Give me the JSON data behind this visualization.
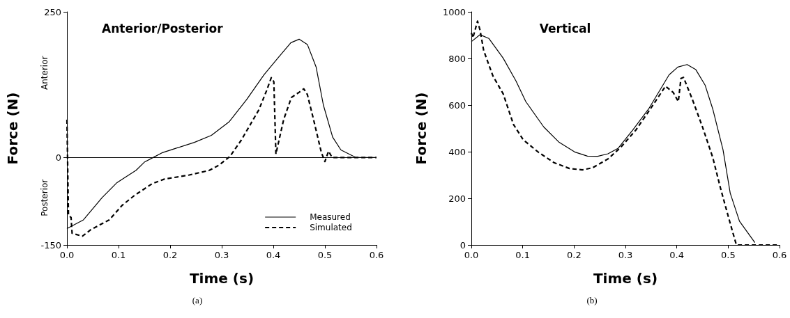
{
  "chart_data": [
    {
      "type": "line",
      "title": "Anterior/Posterior",
      "xlabel": "Time (s)",
      "ylabel": "Force (N)",
      "annotations": [
        "Anterior",
        "Posterior",
        "(a)"
      ],
      "xlim": [
        0,
        0.6
      ],
      "xticks": [
        {
          "value": 0,
          "label": "0.0"
        },
        0.1,
        0.2,
        0.3,
        0.4,
        0.5,
        0.6
      ],
      "ylim": [
        -150,
        250
      ],
      "yticks": [
        -150,
        0,
        250
      ],
      "grid": false,
      "legend": "bottom right",
      "marker": "none",
      "ref_lines": [
        {
          "axis": "y",
          "value": 0,
          "color": "#000000"
        }
      ],
      "series": [
        {
          "name": "Measured",
          "color": "#000000",
          "line_style": "solid",
          "x": [
            0,
            0.032,
            0.068,
            0.097,
            0.134,
            0.15,
            0.167,
            0.184,
            0.208,
            0.247,
            0.28,
            0.314,
            0.348,
            0.382,
            0.41,
            0.434,
            0.45,
            0.466,
            0.483,
            0.497,
            0.515,
            0.531,
            0.56,
            0.6
          ],
          "values": [
            -122,
            -107,
            -69,
            -43,
            -22,
            -8,
            0,
            8,
            15,
            26,
            38,
            61,
            99,
            142,
            172,
            197,
            203,
            194,
            155,
            90,
            35,
            13,
            0,
            0
          ]
        },
        {
          "name": "Simulated",
          "color": "#000000",
          "line_style": "dashed",
          "x": [
            0,
            0.003,
            0.008,
            0.01,
            0.03,
            0.046,
            0.082,
            0.107,
            0.131,
            0.165,
            0.189,
            0.237,
            0.276,
            0.295,
            0.316,
            0.338,
            0.372,
            0.387,
            0.396,
            0.401,
            0.405,
            0.42,
            0.435,
            0.45,
            0.459,
            0.466,
            0.478,
            0.493,
            0.5,
            0.507,
            0.514,
            0.6
          ],
          "values": [
            65,
            -99,
            -103,
            -130,
            -135,
            -124,
            -107,
            -82,
            -65,
            -45,
            -37,
            -30,
            -22,
            -13,
            2,
            30,
            82,
            115,
            137,
            130,
            6,
            65,
            103,
            112,
            118,
            108,
            65,
            9,
            -7,
            11,
            0,
            0
          ]
        }
      ]
    },
    {
      "type": "line",
      "title": "Vertical",
      "xlabel": "Time (s)",
      "ylabel": "Force (N)",
      "annotations": [
        "(b)"
      ],
      "xlim": [
        0,
        0.6
      ],
      "xticks": [
        {
          "value": 0,
          "label": "0.0"
        },
        0.1,
        0.2,
        0.3,
        0.4,
        0.5,
        0.6
      ],
      "ylim": [
        0,
        1000
      ],
      "yticks": [
        0,
        200,
        400,
        600,
        800,
        1000
      ],
      "grid": false,
      "marker": "none",
      "series": [
        {
          "color": "#000000",
          "line_style": "solid",
          "x": [
            0,
            0.017,
            0.034,
            0.062,
            0.087,
            0.106,
            0.141,
            0.171,
            0.201,
            0.226,
            0.246,
            0.266,
            0.286,
            0.315,
            0.345,
            0.385,
            0.402,
            0.42,
            0.437,
            0.455,
            0.47,
            0.49,
            0.504,
            0.522,
            0.552
          ],
          "values": [
            872,
            902,
            886,
            801,
            703,
            615,
            506,
            440,
            399,
            381,
            380,
            391,
            415,
            495,
            583,
            730,
            763,
            774,
            752,
            686,
            583,
            408,
            222,
            102,
            10
          ]
        },
        {
          "color": "#000000",
          "line_style": "dashed",
          "x": [
            0,
            0.003,
            0.012,
            0.017,
            0.024,
            0.042,
            0.062,
            0.082,
            0.101,
            0.131,
            0.161,
            0.191,
            0.216,
            0.236,
            0.266,
            0.291,
            0.321,
            0.345,
            0.378,
            0.393,
            0.403,
            0.408,
            0.413,
            0.43,
            0.45,
            0.47,
            0.485,
            0.5,
            0.507,
            0.516,
            0.6
          ],
          "values": [
            910,
            888,
            960,
            921,
            834,
            725,
            648,
            517,
            451,
            397,
            353,
            328,
            322,
            331,
            369,
            419,
            495,
            572,
            681,
            654,
            615,
            714,
            719,
            626,
            506,
            375,
            244,
            124,
            69,
            0,
            0
          ]
        }
      ]
    }
  ]
}
